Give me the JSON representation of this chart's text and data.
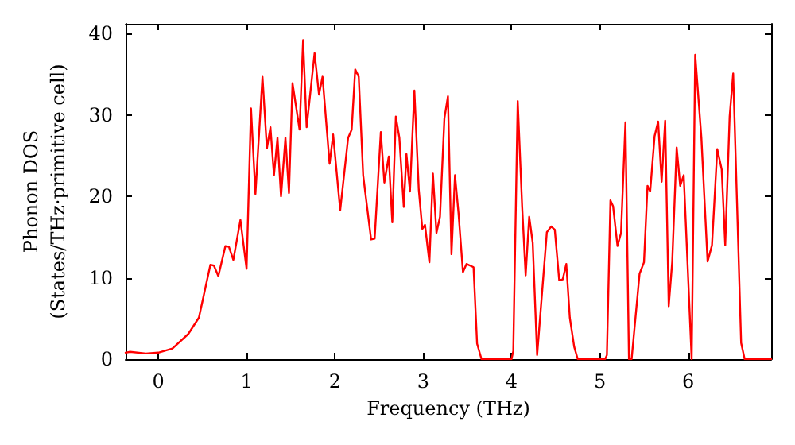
{
  "chart_data": {
    "type": "line",
    "xlabel": "Frequency (THz)",
    "ylabel": "Phonon DOS\n(States/THz·primitive cell)",
    "xlim": [
      -0.37,
      6.94
    ],
    "xticks": [
      0,
      1,
      2,
      3,
      4,
      5,
      6
    ],
    "ylim": [
      0,
      41.2
    ],
    "yticks": [
      0,
      10,
      20,
      30,
      40
    ],
    "grid": false,
    "marker": "none",
    "line_style": "solid",
    "series": [
      {
        "color": "#ff0000",
        "x": [
          -0.37,
          -0.32,
          -0.14,
          0,
          0.16,
          0.34,
          0.46,
          0.59,
          0.63,
          0.68,
          0.76,
          0.8,
          0.85,
          0.93,
          1.0,
          1.05,
          1.1,
          1.18,
          1.23,
          1.27,
          1.31,
          1.35,
          1.39,
          1.44,
          1.48,
          1.52,
          1.6,
          1.64,
          1.68,
          1.77,
          1.82,
          1.86,
          1.94,
          1.98,
          2.06,
          2.15,
          2.19,
          2.23,
          2.27,
          2.32,
          2.41,
          2.45,
          2.52,
          2.56,
          2.61,
          2.65,
          2.69,
          2.73,
          2.78,
          2.81,
          2.85,
          2.9,
          2.95,
          2.99,
          3.02,
          3.07,
          3.11,
          3.15,
          3.19,
          3.24,
          3.28,
          3.32,
          3.36,
          3.4,
          3.45,
          3.49,
          3.57,
          3.61,
          3.66,
          4.0,
          4.02,
          4.07,
          4.12,
          4.16,
          4.2,
          4.24,
          4.29,
          4.4,
          4.45,
          4.49,
          4.54,
          4.58,
          4.62,
          4.66,
          4.71,
          4.75,
          5.06,
          5.08,
          5.12,
          5.15,
          5.2,
          5.24,
          5.29,
          5.33,
          5.36,
          5.45,
          5.5,
          5.54,
          5.57,
          5.62,
          5.66,
          5.7,
          5.74,
          5.78,
          5.82,
          5.87,
          5.91,
          5.95,
          6.04,
          6.08,
          6.15,
          6.22,
          6.27,
          6.33,
          6.38,
          6.42,
          6.47,
          6.51,
          6.6,
          6.64,
          6.94
        ],
        "values": [
          0.8,
          0.9,
          0.7,
          0.8,
          1.3,
          3.1,
          5.1,
          11.6,
          11.5,
          10.2,
          13.9,
          13.8,
          12.2,
          17.1,
          11.1,
          30.8,
          20.3,
          34.7,
          25.9,
          28.5,
          22.6,
          27.2,
          20,
          27.2,
          20.4,
          33.9,
          28.2,
          39.2,
          28.5,
          37.6,
          32.5,
          34.7,
          24,
          27.6,
          18.3,
          27.2,
          28.2,
          35.6,
          34.7,
          22.6,
          14.7,
          14.8,
          27.9,
          21.7,
          24.9,
          16.8,
          29.8,
          27.2,
          18.7,
          25.2,
          20.6,
          33,
          20.8,
          16,
          16.5,
          11.9,
          22.8,
          15.5,
          17.5,
          29.6,
          32.3,
          12.9,
          22.6,
          17.9,
          10.7,
          11.7,
          11.3,
          1.9,
          0,
          0,
          1,
          31.7,
          18.8,
          10.3,
          17.5,
          14.3,
          0.5,
          15.6,
          16.3,
          15.9,
          9.7,
          9.8,
          11.7,
          5.1,
          1.5,
          0,
          0,
          0.5,
          19.5,
          18.8,
          13.9,
          15.5,
          29.1,
          0,
          0,
          10.5,
          11.9,
          21.3,
          20.6,
          27.4,
          29.2,
          21.8,
          29.3,
          6.5,
          12,
          26,
          21.3,
          22.6,
          0,
          37.4,
          27.2,
          12,
          14,
          25.8,
          23.3,
          14,
          29.8,
          35.1,
          2,
          0,
          0
        ]
      }
    ]
  }
}
